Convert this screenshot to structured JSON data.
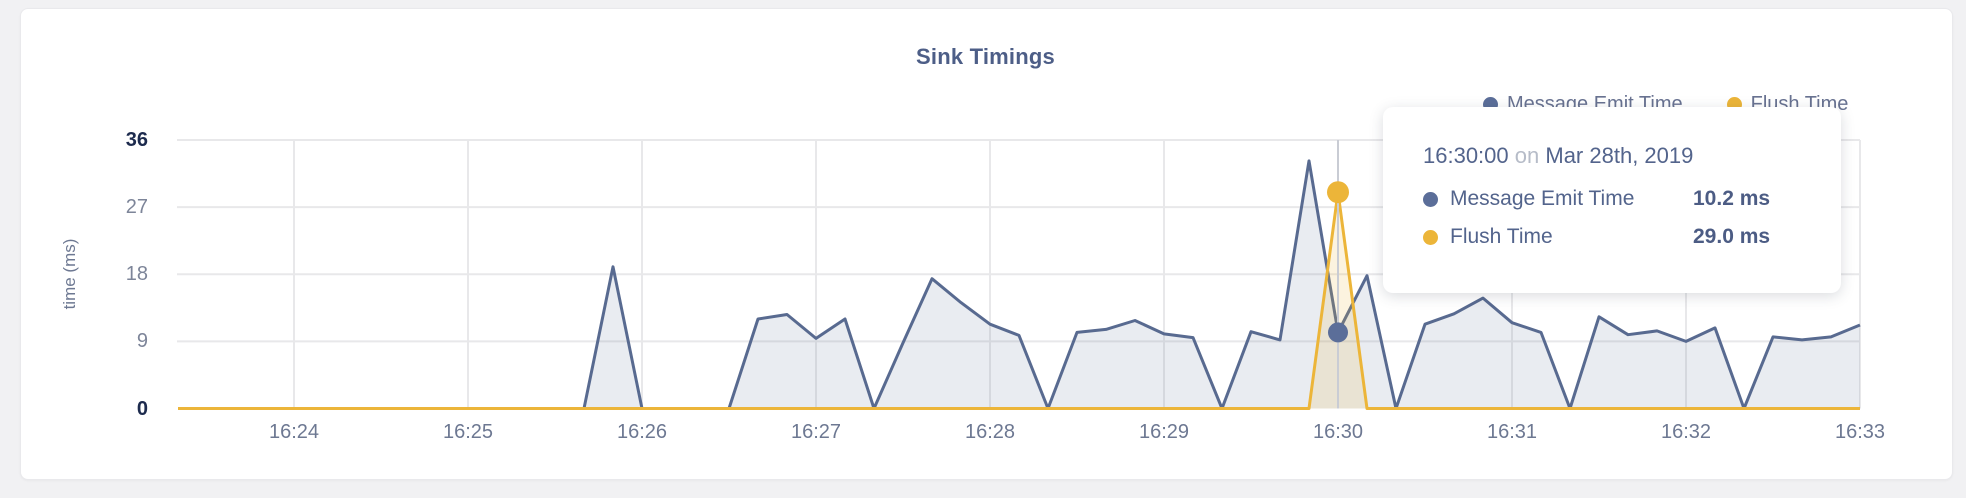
{
  "page": {
    "background_color": "#f1f1f3",
    "card_color": "#ffffff"
  },
  "chart": {
    "title": "Sink Timings",
    "y_axis": {
      "title": "time (ms)",
      "ticks": [
        0,
        9,
        18,
        27,
        36
      ],
      "strong_ticks": [
        0,
        36
      ]
    },
    "x_axis": {
      "ticks": [
        "16:24",
        "16:25",
        "16:26",
        "16:27",
        "16:28",
        "16:29",
        "16:30",
        "16:31",
        "16:32",
        "16:33"
      ]
    },
    "legend": [
      {
        "label": "Message Emit Time",
        "color": "#5b6e99"
      },
      {
        "label": "Flush Time",
        "color": "#ecb539"
      }
    ]
  },
  "chart_data": {
    "type": "area",
    "title": "Sink Timings",
    "ylabel": "time (ms)",
    "ylim": [
      0,
      36
    ],
    "x_start": "16:23:20",
    "x_interval_seconds": 10,
    "xticks": [
      "16:24",
      "16:25",
      "16:26",
      "16:27",
      "16:28",
      "16:29",
      "16:30",
      "16:31",
      "16:32",
      "16:33"
    ],
    "grid": true,
    "legend_position": "top-right",
    "series": [
      {
        "name": "Message Emit Time",
        "color": "#586a90",
        "fill_opacity": 0.13,
        "values": [
          0,
          0,
          0,
          0,
          0,
          0,
          0,
          0,
          0,
          0,
          0,
          0,
          0,
          0,
          0,
          19.0,
          0,
          0,
          0,
          0,
          12.0,
          12.6,
          9.4,
          12.0,
          0,
          8.8,
          17.4,
          14.2,
          11.3,
          9.8,
          0,
          10.2,
          10.6,
          11.8,
          10.0,
          9.5,
          0,
          10.3,
          9.2,
          33.2,
          10.2,
          17.8,
          0,
          11.3,
          12.7,
          14.8,
          11.5,
          10.2,
          0,
          12.3,
          9.9,
          10.4,
          9.0,
          10.8,
          0,
          9.6,
          9.2,
          9.6,
          11.2
        ]
      },
      {
        "name": "Flush Time",
        "color": "#ecb539",
        "fill_opacity": 0.16,
        "values": [
          0,
          0,
          0,
          0,
          0,
          0,
          0,
          0,
          0,
          0,
          0,
          0,
          0,
          0,
          0,
          0,
          0,
          0,
          0,
          0,
          0,
          0,
          0,
          0,
          0,
          0,
          0,
          0,
          0,
          0,
          0,
          0,
          0,
          0,
          0,
          0,
          0,
          0,
          0,
          0,
          29.0,
          0,
          0,
          0,
          0,
          0,
          0,
          0,
          0,
          0,
          0,
          0,
          0,
          0,
          0,
          0,
          0,
          0,
          0
        ]
      }
    ],
    "highlight": {
      "index": 40,
      "time": "16:30:00",
      "values": [
        10.2,
        29.0
      ]
    }
  },
  "tooltip": {
    "time": "16:30:00",
    "joiner": "on",
    "date": "Mar 28th, 2019",
    "rows": [
      {
        "label": "Message Emit Time",
        "value": "10.2 ms",
        "color": "#5b6e99"
      },
      {
        "label": "Flush Time",
        "value": "29.0 ms",
        "color": "#ecb539"
      }
    ]
  }
}
